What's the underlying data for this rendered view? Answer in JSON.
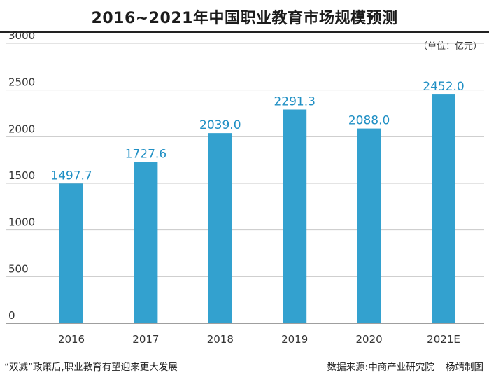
{
  "header": {
    "title": "2016~2021年中国职业教育市场规模预测",
    "unit": "（单位：亿元）"
  },
  "footer": {
    "caption": "“双减”政策后,职业教育有望迎来更大发展",
    "source": "数据来源:中商产业研究院",
    "credit": "杨靖制图"
  },
  "colors": {
    "bar": "#33a1cf",
    "value_label": "#1f8fc4"
  },
  "chart_data": {
    "type": "bar",
    "categories": [
      "2016",
      "2017",
      "2018",
      "2019",
      "2020",
      "2021E"
    ],
    "values": [
      1497.7,
      1727.6,
      2039.0,
      2291.3,
      2088.0,
      2452.0
    ],
    "value_labels": [
      "1497.7",
      "1727.6",
      "2039.0",
      "2291.3",
      "2088.0",
      "2452.0"
    ],
    "yticks": [
      "0",
      "500",
      "1000",
      "1500",
      "2000",
      "2500",
      "3000"
    ],
    "ylim": [
      0,
      3000
    ],
    "grid": true,
    "title": "2016~2021年中国职业教育市场规模预测",
    "xlabel": "",
    "ylabel": ""
  }
}
